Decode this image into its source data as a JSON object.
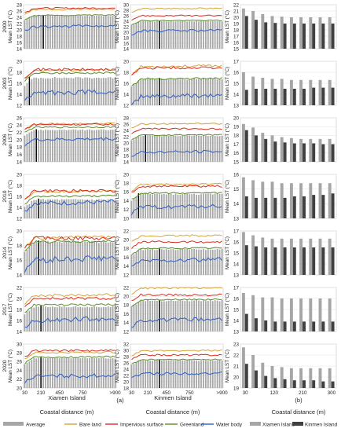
{
  "figure": {
    "ylabel": "Mean LST (°C)",
    "xlabel": "Coastal distance (m)",
    "panel_a_label": "(a)",
    "panel_b_label": "(b)",
    "island_labels": [
      "Xiamen Island",
      "Kinmen Island"
    ],
    "legend_a": [
      "Average",
      "Bare land",
      "Impervious surface",
      "Greenland",
      "Water body"
    ],
    "legend_b": [
      "Xiamen Island",
      "Kinmen Island"
    ]
  },
  "colors": {
    "average": "#a6a6a6",
    "bare": "#d4a63a",
    "impervious": "#d92b1f",
    "green": "#5a8f2a",
    "water": "#2f5fc4",
    "xiamen_bar": "#a6a6a6",
    "kinmen_bar": "#404040",
    "vline": "#000000"
  },
  "chart_data": [
    {
      "type": "line",
      "year": "2000",
      "island": "Xiamen",
      "ylim": [
        14,
        28
      ],
      "yticks": [
        14,
        16,
        18,
        20,
        22,
        24,
        26,
        28
      ],
      "xtick_labels": [
        "30",
        "210",
        "450",
        "750",
        ">900"
      ],
      "average": 24.5,
      "avg_bars": "bar",
      "bare": 26.4,
      "impervious": 26.9,
      "green": 24.6,
      "water": 21.0,
      "vline_at": 8
    },
    {
      "type": "line",
      "year": "2000",
      "island": "Kinmen",
      "ylim": [
        14,
        30
      ],
      "yticks": [
        14,
        16,
        18,
        20,
        22,
        24,
        26,
        28,
        30
      ],
      "xtick_labels": [
        "30",
        "210",
        "450",
        "750",
        ">900"
      ],
      "average": 24.0,
      "bare": 28.5,
      "impervious": 26.0,
      "green": 24.2,
      "water": 20.4,
      "vline_at": 12
    },
    {
      "type": "bar",
      "year": "2000",
      "ylim": [
        15,
        22
      ],
      "yticks": [
        15,
        16,
        17,
        18,
        19,
        20,
        21,
        22
      ],
      "categories": [
        "30",
        "60",
        "90",
        "120",
        "150",
        "180",
        "210",
        "240",
        "270",
        "300"
      ],
      "series": [
        {
          "name": "Xiamen Island",
          "values": [
            21.4,
            21.0,
            20.5,
            20.2,
            20.1,
            20.0,
            20.0,
            20.0,
            20.0,
            20.0
          ]
        },
        {
          "name": "Kinmen Island",
          "values": [
            20.2,
            19.6,
            19.2,
            19.1,
            19.0,
            19.0,
            19.0,
            19.0,
            19.0,
            19.0
          ]
        }
      ]
    },
    {
      "type": "line",
      "year": "2003",
      "island": "Xiamen",
      "ylim": [
        12,
        20
      ],
      "yticks": [
        12,
        14,
        16,
        18,
        20
      ],
      "xtick_labels": [
        "30",
        "210",
        "450",
        "750",
        ">900"
      ],
      "average": 17.0,
      "bare": 18.3,
      "impervious": 18.5,
      "green": 17.8,
      "water": 14.2,
      "vline_at": 2
    },
    {
      "type": "line",
      "year": "2003",
      "island": "Kinmen",
      "ylim": [
        12,
        20
      ],
      "yticks": [
        12,
        14,
        16,
        18,
        20
      ],
      "xtick_labels": [
        "30",
        "210",
        "450",
        "750",
        ">900"
      ],
      "average": 16.8,
      "bare": 19.0,
      "impervious": 18.8,
      "green": 16.8,
      "water": 13.5,
      "vline_at": 12
    },
    {
      "type": "bar",
      "year": "2003",
      "ylim": [
        13,
        17
      ],
      "yticks": [
        13,
        14,
        15,
        16,
        17
      ],
      "categories": [
        "30",
        "60",
        "90",
        "120",
        "150",
        "180",
        "210",
        "240",
        "270",
        "300"
      ],
      "series": [
        {
          "name": "Xiamen Island",
          "values": [
            16.0,
            15.6,
            15.5,
            15.4,
            15.4,
            15.3,
            15.3,
            15.3,
            15.3,
            15.3
          ]
        },
        {
          "name": "Kinmen Island",
          "values": [
            14.4,
            14.5,
            14.5,
            14.5,
            14.5,
            14.5,
            14.5,
            14.6,
            14.6,
            14.6
          ]
        }
      ]
    },
    {
      "type": "line",
      "year": "2006",
      "island": "Xiamen",
      "ylim": [
        14,
        26
      ],
      "yticks": [
        14,
        16,
        18,
        20,
        22,
        24,
        26
      ],
      "xtick_labels": [
        "30",
        "210",
        "450",
        "750",
        ">900"
      ],
      "average": 22.7,
      "bare": 24.3,
      "impervious": 24.2,
      "green": 23.4,
      "water": 20.0,
      "vline_at": 5
    },
    {
      "type": "line",
      "year": "2006",
      "island": "Kinmen",
      "ylim": [
        14,
        28
      ],
      "yticks": [
        14,
        16,
        18,
        20,
        22,
        24,
        26,
        28
      ],
      "xtick_labels": [
        "30",
        "210",
        "450",
        "750",
        ">900"
      ],
      "average": 22.3,
      "bare": 26.0,
      "impervious": 24.5,
      "green": 22.5,
      "water": 17.0,
      "vline_at": 6
    },
    {
      "type": "bar",
      "year": "2006",
      "ylim": [
        15,
        20
      ],
      "yticks": [
        15,
        16,
        17,
        18,
        19,
        20
      ],
      "categories": [
        "30",
        "60",
        "90",
        "120",
        "150",
        "180",
        "210",
        "240",
        "270",
        "300"
      ],
      "series": [
        {
          "name": "Xiamen Island",
          "values": [
            19.3,
            18.9,
            18.3,
            18.0,
            17.8,
            17.7,
            17.6,
            17.6,
            17.6,
            17.6
          ]
        },
        {
          "name": "Kinmen Island",
          "values": [
            18.6,
            18.0,
            17.6,
            17.3,
            17.2,
            17.1,
            17.1,
            17.1,
            17.0,
            17.0
          ]
        }
      ]
    },
    {
      "type": "line",
      "year": "2010",
      "island": "Xiamen",
      "ylim": [
        12,
        20
      ],
      "yticks": [
        12,
        14,
        16,
        18,
        20
      ],
      "xtick_labels": [
        "30",
        "210",
        "450",
        "750",
        ">900"
      ],
      "average": 15.4,
      "bare": 16.8,
      "impervious": 17.0,
      "green": 16.0,
      "water": 14.7,
      "vline_at": 6
    },
    {
      "type": "line",
      "year": "2010",
      "island": "Kinmen",
      "ylim": [
        10,
        20
      ],
      "yticks": [
        10,
        12,
        14,
        16,
        18,
        20
      ],
      "xtick_labels": [
        "30",
        "210",
        "450",
        "750",
        ">900"
      ],
      "average": 15.5,
      "bare": 17.6,
      "impervious": 17.3,
      "green": 15.7,
      "water": 12.5,
      "vline_at": 3
    },
    {
      "type": "bar",
      "year": "2010",
      "ylim": [
        13,
        16
      ],
      "yticks": [
        13,
        14,
        15,
        16
      ],
      "categories": [
        "30",
        "60",
        "90",
        "120",
        "150",
        "180",
        "210",
        "240",
        "270",
        "300"
      ],
      "series": [
        {
          "name": "Xiamen Island",
          "values": [
            15.8,
            15.6,
            15.5,
            15.5,
            15.4,
            15.4,
            15.4,
            15.4,
            15.4,
            15.4
          ]
        },
        {
          "name": "Kinmen Island",
          "values": [
            14.5,
            14.4,
            14.4,
            14.4,
            14.4,
            14.5,
            14.5,
            14.6,
            14.6,
            14.7
          ]
        }
      ]
    },
    {
      "type": "line",
      "year": "2014",
      "island": "Xiamen",
      "ylim": [
        14,
        20
      ],
      "yticks": [
        14,
        16,
        18,
        20
      ],
      "xtick_labels": [
        "30",
        "210",
        "450",
        "750",
        ">900"
      ],
      "average": 18.5,
      "bare": 19.0,
      "impervious": 19.0,
      "green": 18.5,
      "water": 16.0,
      "vline_at": 6
    },
    {
      "type": "line",
      "year": "2014",
      "island": "Kinmen",
      "ylim": [
        12,
        22
      ],
      "yticks": [
        12,
        14,
        16,
        18,
        20,
        22
      ],
      "xtick_labels": [
        "30",
        "210",
        "450",
        "750",
        ">900"
      ],
      "average": 17.8,
      "bare": 20.8,
      "impervious": 19.5,
      "green": 18.0,
      "water": 15.2,
      "vline_at": 12
    },
    {
      "type": "bar",
      "year": "2014",
      "ylim": [
        13,
        17
      ],
      "yticks": [
        13,
        14,
        15,
        16,
        17
      ],
      "categories": [
        "30",
        "60",
        "90",
        "120",
        "150",
        "180",
        "210",
        "240",
        "270",
        "300"
      ],
      "series": [
        {
          "name": "Xiamen Island",
          "values": [
            16.9,
            16.6,
            16.4,
            16.3,
            16.3,
            16.3,
            16.3,
            16.3,
            16.3,
            16.3
          ]
        },
        {
          "name": "Kinmen Island",
          "values": [
            15.7,
            15.6,
            15.5,
            15.5,
            15.5,
            15.5,
            15.5,
            15.5,
            15.5,
            15.5
          ]
        }
      ]
    },
    {
      "type": "line",
      "year": "2017",
      "island": "Xiamen",
      "ylim": [
        14,
        22
      ],
      "yticks": [
        14,
        16,
        18,
        20,
        22
      ],
      "xtick_labels": [
        "30",
        "210",
        "450",
        "750",
        ">900"
      ],
      "average": 18.5,
      "bare": 20.5,
      "impervious": 20.0,
      "green": 18.8,
      "water": 16.0,
      "vline_at": 7
    },
    {
      "type": "line",
      "year": "2017",
      "island": "Kinmen",
      "ylim": [
        12,
        22
      ],
      "yticks": [
        12,
        14,
        16,
        18,
        20,
        22
      ],
      "xtick_labels": [
        "30",
        "210",
        "450",
        "750",
        ">900"
      ],
      "average": 19.0,
      "bare": 21.8,
      "impervious": 20.3,
      "green": 19.2,
      "water": 14.5,
      "vline_at": 12
    },
    {
      "type": "bar",
      "year": "2017",
      "ylim": [
        13,
        17
      ],
      "yticks": [
        13,
        14,
        15,
        16,
        17
      ],
      "categories": [
        "30",
        "60",
        "90",
        "120",
        "150",
        "180",
        "210",
        "240",
        "270",
        "300"
      ],
      "series": [
        {
          "name": "Xiamen Island",
          "values": [
            16.5,
            16.3,
            16.1,
            16.1,
            16.0,
            16.0,
            16.0,
            16.0,
            16.0,
            16.0
          ]
        },
        {
          "name": "Kinmen Island",
          "values": [
            14.6,
            14.2,
            14.0,
            13.9,
            13.9,
            13.9,
            13.9,
            13.9,
            13.9,
            13.9
          ]
        }
      ]
    },
    {
      "type": "line",
      "year": "2020",
      "island": "Xiamen",
      "ylim": [
        20,
        30
      ],
      "yticks": [
        20,
        22,
        24,
        26,
        28,
        30
      ],
      "xtick_labels": [
        "30",
        "210",
        "450",
        "750",
        ">900"
      ],
      "average": 26.8,
      "bare": 28.0,
      "impervious": 28.5,
      "green": 27.0,
      "water": 22.6,
      "vline_at": 7
    },
    {
      "type": "line",
      "year": "2020",
      "island": "Kinmen",
      "ylim": [
        18,
        32
      ],
      "yticks": [
        18,
        20,
        22,
        24,
        26,
        28,
        30,
        32
      ],
      "xtick_labels": [
        "30",
        "210",
        "450",
        "750",
        ">900"
      ],
      "average": 26.8,
      "bare": 29.8,
      "impervious": 28.5,
      "green": 27.0,
      "water": 22.5,
      "vline_at": 12
    },
    {
      "type": "bar",
      "year": "2020",
      "ylim": [
        19,
        23
      ],
      "yticks": [
        19,
        20,
        21,
        22,
        23
      ],
      "categories": [
        "30",
        "60",
        "90",
        "120",
        "150",
        "180",
        "210",
        "240",
        "270",
        "300"
      ],
      "series": [
        {
          "name": "Xiamen Island",
          "values": [
            22.7,
            22.0,
            21.3,
            21.0,
            20.9,
            20.8,
            20.8,
            20.8,
            20.8,
            20.8
          ]
        },
        {
          "name": "Kinmen Island",
          "values": [
            21.2,
            20.6,
            20.1,
            19.9,
            19.8,
            19.7,
            19.7,
            19.7,
            19.6,
            19.6
          ]
        }
      ]
    }
  ],
  "bar_xtick_labels": [
    "30",
    "120",
    "210",
    "300"
  ]
}
